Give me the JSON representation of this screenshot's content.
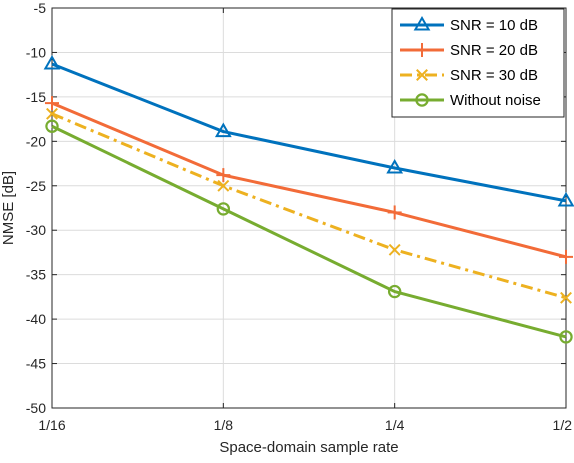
{
  "chart_data": {
    "type": "line",
    "title": "",
    "xlabel": "Space-domain sample rate",
    "ylabel": "NMSE [dB]",
    "categories": [
      "1/16",
      "1/8",
      "1/4",
      "1/2"
    ],
    "ylim": [
      -50,
      -5
    ],
    "yticks": [
      -5,
      -10,
      -15,
      -20,
      -25,
      -30,
      -35,
      -40,
      -45,
      -50
    ],
    "grid": true,
    "legend_position": "top-right",
    "series": [
      {
        "name": "SNR = 10 dB",
        "values": [
          -11.3,
          -18.9,
          -23.0,
          -26.7
        ],
        "color": "#0072BD",
        "marker": "triangle-up",
        "line_style": "solid"
      },
      {
        "name": "SNR = 20 dB",
        "values": [
          -15.7,
          -23.8,
          -28.0,
          -33.0
        ],
        "color": "#F26B38",
        "marker": "plus",
        "line_style": "solid"
      },
      {
        "name": "SNR = 30 dB",
        "values": [
          -16.9,
          -25.0,
          -32.2,
          -37.6
        ],
        "color": "#EDB120",
        "marker": "x",
        "line_style": "dash-dot"
      },
      {
        "name": "Without noise",
        "values": [
          -18.3,
          -27.6,
          -36.9,
          -42.0
        ],
        "color": "#77AC30",
        "marker": "circle",
        "line_style": "solid"
      }
    ]
  }
}
